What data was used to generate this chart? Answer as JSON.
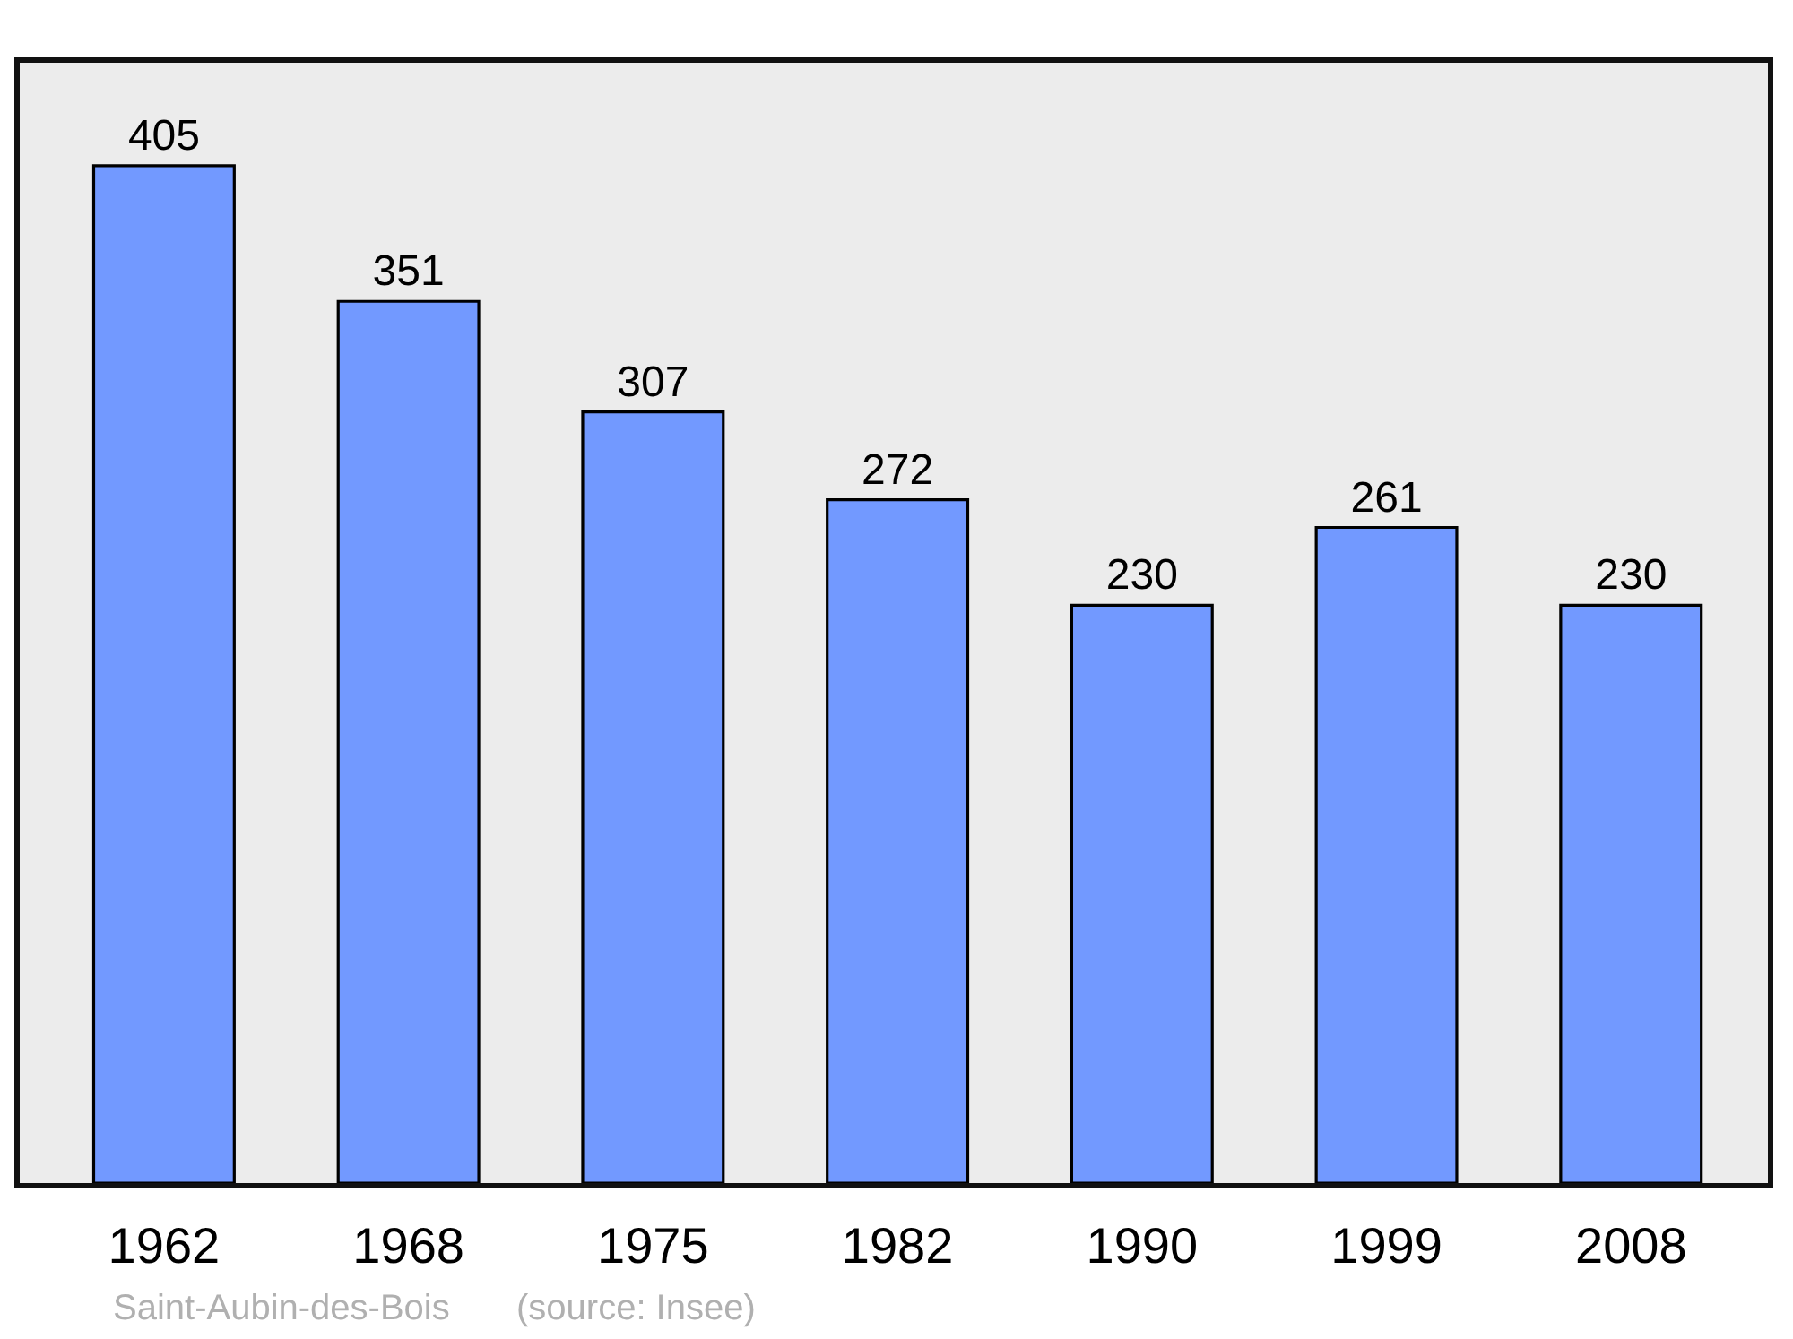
{
  "chart_data": {
    "type": "bar",
    "categories": [
      "1962",
      "1968",
      "1975",
      "1982",
      "1990",
      "1999",
      "2008"
    ],
    "values": [
      405,
      351,
      307,
      272,
      230,
      261,
      230
    ],
    "color": "#7299ff",
    "ylim": [
      0,
      446
    ],
    "data_labels": true,
    "tick_labels": "x",
    "annotations": [
      "Saint-Aubin-des-Bois",
      "(source: Insee)"
    ]
  }
}
